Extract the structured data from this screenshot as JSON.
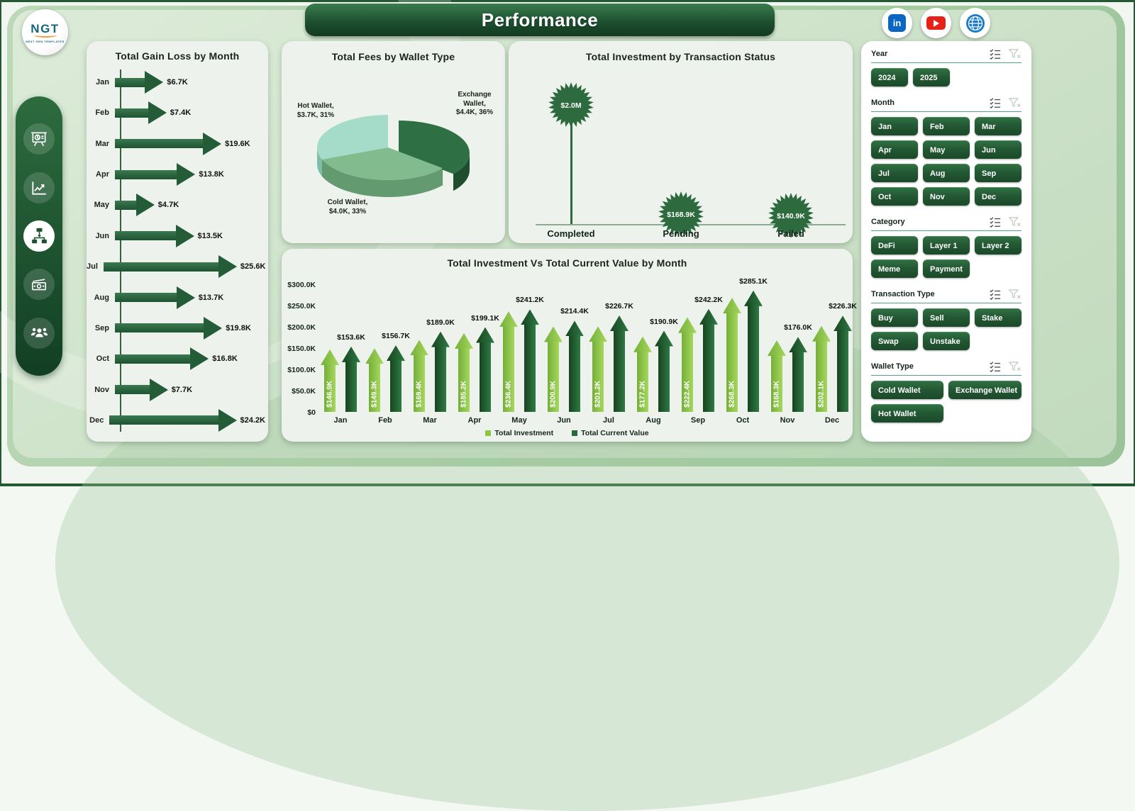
{
  "brand": {
    "logo_text": "NGT",
    "logo_sub": "NEXT GEN TEMPLATES"
  },
  "header": {
    "title": "Performance"
  },
  "social": [
    {
      "name": "linkedin"
    },
    {
      "name": "youtube"
    },
    {
      "name": "website"
    }
  ],
  "sidebar": {
    "items": [
      "presentation-chart",
      "trend-chart",
      "hierarchy",
      "money",
      "team"
    ],
    "active": "hierarchy"
  },
  "colors": {
    "dark_green": "#235c36",
    "light_series": "#8dc63f",
    "dark_series": "#26693a",
    "marker_green": "#2d6b3e",
    "card_bg": "#edf2ec",
    "banner_green": "#1d5130"
  },
  "chart_data": [
    {
      "type": "bar",
      "orientation": "horizontal",
      "title": "Total Gain Loss by Month",
      "categories": [
        "Jan",
        "Feb",
        "Mar",
        "Apr",
        "May",
        "Jun",
        "Jul",
        "Aug",
        "Sep",
        "Oct",
        "Nov",
        "Dec"
      ],
      "values_k": [
        6.7,
        7.4,
        19.6,
        13.8,
        4.7,
        13.5,
        25.6,
        13.7,
        19.8,
        16.8,
        7.7,
        24.2
      ],
      "labels": [
        "$6.7K",
        "$7.4K",
        "$19.6K",
        "$13.8K",
        "$4.7K",
        "$13.5K",
        "$25.6K",
        "$13.7K",
        "$19.8K",
        "$16.8K",
        "$7.7K",
        "$24.2K"
      ],
      "xlabel": "",
      "ylabel": "",
      "grid": false
    },
    {
      "type": "pie",
      "title": "Total Fees by Wallet Type",
      "slices": [
        {
          "key": "exchange",
          "label": "Exchange Wallet",
          "value_k": 4.4,
          "pct": 36,
          "color": "#2f6f44",
          "label_lines": [
            "Exchange",
            "Wallet,",
            "$4.4K, 36%"
          ]
        },
        {
          "key": "cold",
          "label": "Cold Wallet",
          "value_k": 4.0,
          "pct": 33,
          "color": "#82bb8d",
          "label_lines": [
            "Cold Wallet,",
            "$4.0K, 33%"
          ]
        },
        {
          "key": "hot",
          "label": "Hot Wallet",
          "value_k": 3.7,
          "pct": 31,
          "color": "#a5dcc9",
          "label_lines": [
            "Hot Wallet,",
            "$3.7K, 31%"
          ]
        }
      ],
      "legend_position": "none",
      "exploded_slice": "Exchange Wallet"
    },
    {
      "type": "lollipop",
      "title": "Total Investment by Transaction Status",
      "categories": [
        "Completed",
        "Pending",
        "Failed"
      ],
      "values_k": [
        2000,
        168.9,
        140.9
      ],
      "labels": [
        "$2.0M",
        "$168.9K",
        "$140.9K"
      ],
      "grid": false
    },
    {
      "type": "bar",
      "title": "Total Investment Vs Total Current Value by Month",
      "categories": [
        "Jan",
        "Feb",
        "Mar",
        "Apr",
        "May",
        "Jun",
        "Jul",
        "Aug",
        "Sep",
        "Oct",
        "Nov",
        "Dec"
      ],
      "series": [
        {
          "name": "Total Investment",
          "color": "#8dc63f",
          "values_k": [
            146.9,
            149.3,
            169.4,
            185.2,
            236.4,
            200.9,
            201.2,
            177.2,
            222.4,
            268.3,
            168.3,
            202.1
          ],
          "labels": [
            "$146.9K",
            "$149.3K",
            "$169.4K",
            "$185.2K",
            "$236.4K",
            "$200.9K",
            "$201.2K",
            "$177.2K",
            "$222.4K",
            "$268.3K",
            "$168.3K",
            "$202.1K"
          ]
        },
        {
          "name": "Total Current Value",
          "color": "#26693a",
          "values_k": [
            153.6,
            156.7,
            189.0,
            199.1,
            241.2,
            214.4,
            226.7,
            190.9,
            242.2,
            285.1,
            176.0,
            226.3
          ],
          "labels": [
            "$153.6K",
            "$156.7K",
            "$189.0K",
            "$199.1K",
            "$241.2K",
            "$214.4K",
            "$226.7K",
            "$190.9K",
            "$242.2K",
            "$285.1K",
            "$176.0K",
            "$226.3K"
          ]
        }
      ],
      "yticks": [
        "$300.0K",
        "$250.0K",
        "$200.0K",
        "$150.0K",
        "$100.0K",
        "$50.0K",
        "$0"
      ],
      "ylim_k": [
        0,
        300
      ],
      "grid": false,
      "legend_position": "bottom"
    }
  ],
  "filters": {
    "sections": [
      {
        "label": "Year",
        "layout": "year",
        "buttons": [
          "2024",
          "2025"
        ]
      },
      {
        "label": "Month",
        "layout": "three",
        "buttons": [
          "Jan",
          "Feb",
          "Mar",
          "Apr",
          "May",
          "Jun",
          "Jul",
          "Aug",
          "Sep",
          "Oct",
          "Nov",
          "Dec"
        ]
      },
      {
        "label": "Category",
        "layout": "three",
        "buttons": [
          "DeFi",
          "Layer 1",
          "Layer 2",
          "Meme",
          "Payment"
        ]
      },
      {
        "label": "Transaction Type",
        "layout": "three",
        "buttons": [
          "Buy",
          "Sell",
          "Stake",
          "Swap",
          "Unstake"
        ]
      },
      {
        "label": "Wallet Type",
        "layout": "wallet",
        "buttons": [
          "Cold Wallet",
          "Exchange Wallet",
          "Hot Wallet"
        ]
      }
    ]
  }
}
